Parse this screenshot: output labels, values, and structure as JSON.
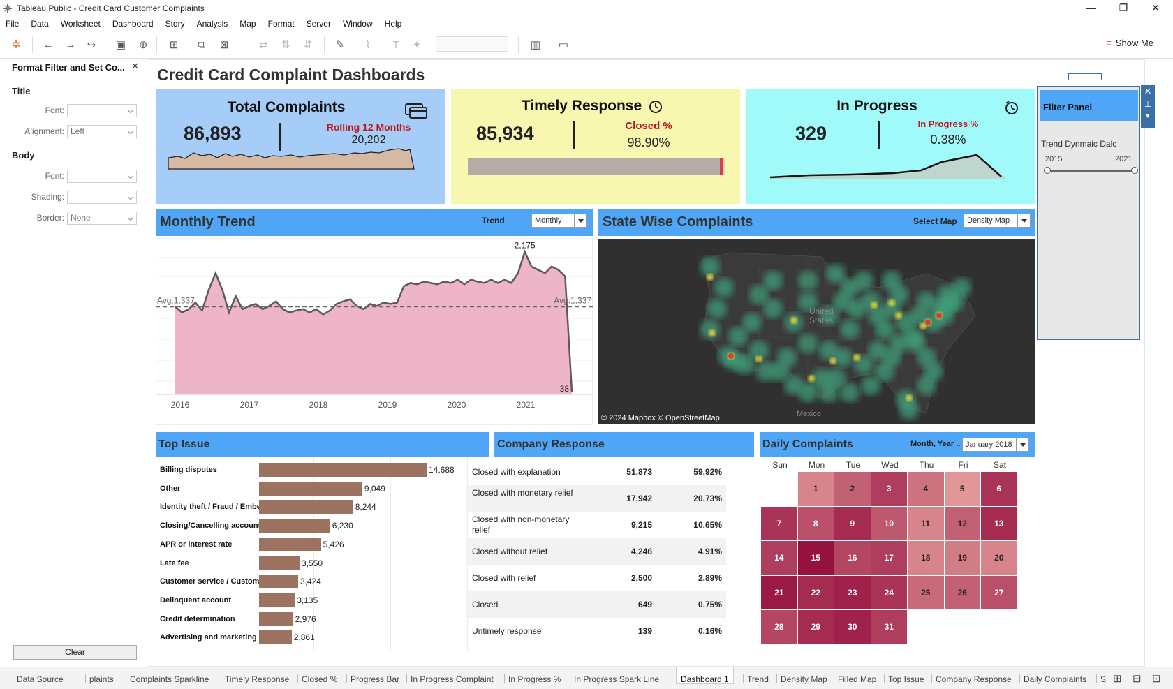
{
  "window": {
    "title": "Tableau Public - Credit Card Customer Complaints",
    "min": "—",
    "restore": "❐",
    "close": "✕"
  },
  "menu": [
    "File",
    "Data",
    "Worksheet",
    "Dashboard",
    "Story",
    "Analysis",
    "Map",
    "Format",
    "Server",
    "Window",
    "Help"
  ],
  "toolbar": {
    "show_me": "Show Me"
  },
  "left_pane": {
    "header": "Format Filter and Set Co...",
    "title_section": "Title",
    "body_section": "Body",
    "font_label": "Font:",
    "alignment_label": "Alignment:",
    "alignment_value": "Left",
    "font2_label": "Font:",
    "shading_label": "Shading:",
    "border_label": "Border:",
    "border_value": "None",
    "clear_button": "Clear"
  },
  "dashboard": {
    "title": "Credit Card Complaint Dashboards",
    "kpi_total": {
      "title": "Total Complaints",
      "value": "86,893",
      "sub_label": "Rolling 12 Months",
      "sub_value": "20,202",
      "bg": "#a6cdf7"
    },
    "kpi_timely": {
      "title": "Timely Response",
      "value": "85,934",
      "sub_label": "Closed %",
      "sub_value": "98.90%",
      "progress": 0.989,
      "bg": "#f7f7b0"
    },
    "kpi_progress": {
      "title": "In Progress",
      "value": "329",
      "sub_label": "In Progress %",
      "sub_value": "0.38%",
      "bg": "#a0fafa"
    },
    "monthly_trend": {
      "title": "Monthly Trend",
      "trend_label": "Trend",
      "trend_value": "Monthly"
    },
    "state_wise": {
      "title": "State Wise Complaints",
      "select_label": "Select Map",
      "select_value": "Density Map",
      "map_attr": "© 2024 Mapbox © OpenStreetMap",
      "label_us1": "United",
      "label_us2": "States",
      "label_mx": "Mexico"
    },
    "top_issue": {
      "title": "Top Issue"
    },
    "company_response": {
      "title": "Company Response",
      "rows": [
        {
          "label": "Closed with explanation",
          "count": "51,873",
          "pct": "59.92%"
        },
        {
          "label": "Closed with monetary relief",
          "count": "17,942",
          "pct": "20.73%"
        },
        {
          "label": "Closed with non-monetary relief",
          "count": "9,215",
          "pct": "10.65%"
        },
        {
          "label": "Closed without relief",
          "count": "4,246",
          "pct": "4.91%"
        },
        {
          "label": "Closed with relief",
          "count": "2,500",
          "pct": "2.89%"
        },
        {
          "label": "Closed",
          "count": "649",
          "pct": "0.75%"
        },
        {
          "label": "Untimely response",
          "count": "139",
          "pct": "0.16%"
        }
      ]
    },
    "daily": {
      "title": "Daily Complaints",
      "select_label": "Month, Year ..",
      "select_value": "January 2018",
      "days": [
        "Sun",
        "Mon",
        "Tue",
        "Wed",
        "Thu",
        "Fri",
        "Sat"
      ],
      "first_weekday": 1,
      "levels": [
        0.35,
        0.55,
        0.75,
        0.45,
        0.25,
        0.8,
        0.8,
        0.65,
        0.85,
        0.6,
        0.35,
        0.55,
        0.85,
        0.75,
        1.0,
        0.7,
        0.75,
        0.35,
        0.4,
        0.35,
        0.95,
        0.85,
        0.9,
        0.8,
        0.5,
        0.55,
        0.65,
        0.7,
        0.85,
        0.9,
        0.75
      ]
    },
    "filter_panel": {
      "title": "Filter Panel",
      "slider_label": "Trend Dynmaic Dalc",
      "min": "2015",
      "max": "2021"
    }
  },
  "chart_data": [
    {
      "type": "area",
      "title": "Monthly Trend",
      "x_ticks": [
        "2016",
        "2017",
        "2018",
        "2019",
        "2020",
        "2021"
      ],
      "series": [
        {
          "values": [
            1337,
            1250,
            1300,
            1400,
            1280,
            1600,
            1850,
            1600,
            1250,
            1500,
            1300,
            1350,
            1380,
            1300,
            1350,
            1420,
            1300,
            1250,
            1280,
            1300,
            1250,
            1300,
            1220,
            1280,
            1380,
            1420,
            1450,
            1350,
            1300,
            1380,
            1350,
            1400,
            1380,
            1400,
            1650,
            1700,
            1680,
            1720,
            1700,
            1680,
            1720,
            1700,
            1750,
            1680,
            1750,
            1720,
            1700,
            1750,
            1700,
            1750,
            1700,
            1850,
            2175,
            1950,
            1900,
            1850,
            1950,
            1900,
            1800,
            38
          ]
        }
      ],
      "avg_line": 1337,
      "avg_label": "Avg:1,337",
      "max_label": "2,175",
      "last_label": "38",
      "ylim": [
        0,
        2300
      ],
      "colors": {
        "fill": "#eeb4c8",
        "line": "#5a5a5a"
      }
    },
    {
      "type": "bar",
      "title": "Top Issue",
      "categories": [
        "Billing disputes",
        "Other",
        "Identity theft / Fraud / Embe..",
        "Closing/Cancelling account",
        "APR or interest rate",
        "Late fee",
        "Customer service / Custome..",
        "Delinquent account",
        "Credit determination",
        "Advertising and marketing"
      ],
      "values": [
        14688,
        9049,
        8244,
        6230,
        5426,
        3550,
        3424,
        3135,
        2976,
        2861
      ],
      "labels": [
        "14,688",
        "9,049",
        "8,244",
        "6,230",
        "5,426",
        "3,550",
        "3,424",
        "3,135",
        "2,976",
        "2,861"
      ],
      "xlim": [
        0,
        16000
      ]
    }
  ],
  "status": {
    "tabs": [
      "Data Source",
      "plaints",
      "Complaints Sparkline",
      "Timely Response",
      "Closed %",
      "Progress Bar",
      "In Progress Complaint",
      "In Progress %",
      "In Progress Spark Line",
      "Dashboard 1",
      "Trend",
      "Density Map",
      "Filled Map",
      "Top Issue",
      "Company Response",
      "Daily Complaints",
      "S"
    ]
  }
}
